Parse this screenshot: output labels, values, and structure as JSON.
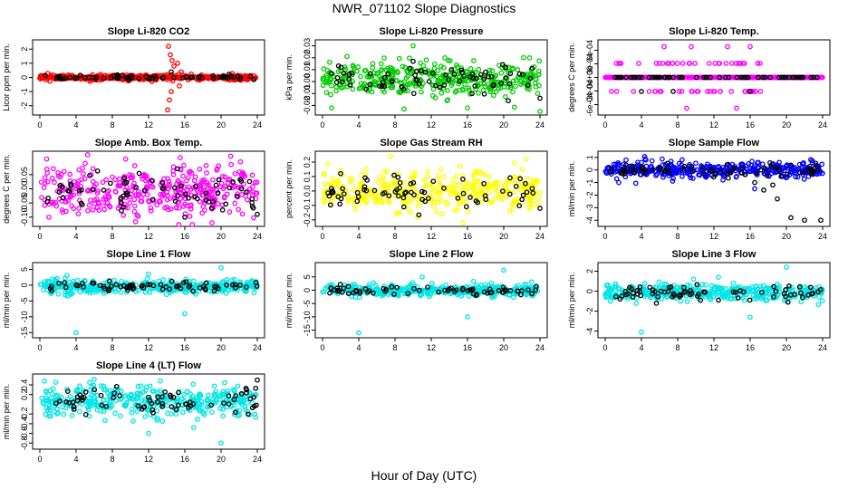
{
  "figure": {
    "title": "NWR_071102  Slope Diagnostics",
    "xlabel": "Hour of Day (UTC)"
  },
  "chart_data": [
    {
      "type": "scatter",
      "title": "Slope Li-820 CO2",
      "ylabel": "Licor ppm per min.",
      "xlim": [
        0,
        24
      ],
      "xticks": [
        "0",
        "4",
        "8",
        "12",
        "16",
        "20",
        "24"
      ],
      "ylim": [
        -2.4,
        2.4
      ],
      "yticks": [
        {
          "v": -2,
          "label": "-2"
        },
        {
          "v": -1,
          "label": "-1"
        },
        {
          "v": 0,
          "label": "0"
        },
        {
          "v": 1,
          "label": "1"
        },
        {
          "v": 2,
          "label": "2"
        }
      ],
      "color": "#ff0000",
      "center": 0,
      "noise": 0.1,
      "black_noise": 0.08,
      "outliers": [
        [
          14.2,
          2.2
        ],
        [
          14.4,
          1.6
        ],
        [
          14.6,
          1.2
        ],
        [
          14.8,
          0.8
        ],
        [
          14.5,
          -1.0
        ],
        [
          14.3,
          -1.6
        ],
        [
          14.1,
          -2.3
        ],
        [
          15.2,
          1.0
        ],
        [
          15.4,
          -0.6
        ],
        [
          15.6,
          0.4
        ]
      ],
      "black_outliers": [
        [
          14.5,
          0.4
        ]
      ]
    },
    {
      "type": "scatter",
      "title": "Slope Li-820 Pressure",
      "ylabel": "kPa per min.",
      "xlim": [
        0,
        24
      ],
      "xticks": [
        "0",
        "4",
        "8",
        "12",
        "16",
        "20",
        "24"
      ],
      "ylim": [
        -0.025,
        0.032
      ],
      "yticks": [
        {
          "v": -0.02,
          "label": "-0.02"
        },
        {
          "v": -0.01,
          "label": "-0.01"
        },
        {
          "v": 0,
          "label": "0.00"
        },
        {
          "v": 0.01,
          "label": "0.01"
        },
        {
          "v": 0.02,
          "label": "0.02"
        },
        {
          "v": 0.03,
          "label": "0.03"
        }
      ],
      "color": "#00cc00",
      "center": 0.002,
      "noise": 0.007,
      "black_noise": 0.006,
      "outliers": [
        [
          1.0,
          -0.022
        ],
        [
          9.0,
          -0.023
        ],
        [
          10.0,
          0.03
        ],
        [
          16.0,
          -0.022
        ],
        [
          24.0,
          -0.025
        ],
        [
          13.5,
          0.02
        ]
      ],
      "black_outliers": [
        [
          10.0,
          0.017
        ],
        [
          24.0,
          -0.014
        ],
        [
          16.5,
          -0.01
        ],
        [
          20.5,
          -0.016
        ]
      ]
    },
    {
      "type": "scatter",
      "title": "Slope Li-820 Temp.",
      "ylabel": "degrees C per min.",
      "xlim": [
        0,
        24
      ],
      "xticks": [
        "0",
        "4",
        "8",
        "12",
        "16",
        "20",
        "24"
      ],
      "ylim": [
        -0.00075,
        0.00075
      ],
      "yticks": [
        {
          "v": -0.0006,
          "label": "-6e-04"
        },
        {
          "v": -0.0003,
          "label": "-3e-04"
        },
        {
          "v": 0,
          "label": "0e+00"
        },
        {
          "v": 0.0003,
          "label": "3e-04"
        },
        {
          "v": 0.0006,
          "label": "6e-04"
        }
      ],
      "color": "#ff00ff",
      "center": 0,
      "noise": 0,
      "black_noise": 0,
      "quantized": [
        0.00031,
        -0.00031
      ],
      "quantized_count": 60,
      "outliers": [
        [
          6.5,
          0.00068
        ],
        [
          9.5,
          0.00068
        ],
        [
          13.5,
          0.00068
        ],
        [
          16.0,
          0.00068
        ],
        [
          9.0,
          -0.00068
        ],
        [
          14.5,
          -0.00068
        ]
      ],
      "black_outliers": [
        [
          4.0,
          -0.00031
        ],
        [
          7.5,
          -0.00031
        ],
        [
          16.0,
          -0.00031
        ]
      ]
    },
    {
      "type": "scatter",
      "title": "Slope Amb. Box Temp.",
      "ylabel": "degrees C per min.",
      "xlim": [
        0,
        24
      ],
      "xticks": [
        "0",
        "4",
        "8",
        "12",
        "16",
        "20",
        "24"
      ],
      "ylim": [
        -0.12,
        0.12
      ],
      "yticks": [
        {
          "v": -0.1,
          "label": "-0.10"
        },
        {
          "v": -0.05,
          "label": "-0.05"
        },
        {
          "v": 0,
          "label": "0.00"
        },
        {
          "v": 0.05,
          "label": "0.05"
        }
      ],
      "color": "#ff00ff",
      "center": -0.01,
      "noise": 0.04,
      "black_noise": 0.035,
      "outliers": [
        [
          15.5,
          0.11
        ],
        [
          19.0,
          -0.12
        ],
        [
          5.0,
          0.09
        ],
        [
          1.0,
          -0.1
        ]
      ],
      "black_outliers": [
        [
          24.0,
          -0.09
        ],
        [
          16.0,
          -0.1
        ]
      ]
    },
    {
      "type": "scatter",
      "title": "Slope Gas Stream RH",
      "ylabel": "percent per min.",
      "xlim": [
        0,
        24
      ],
      "xticks": [
        "0",
        "4",
        "8",
        "12",
        "16",
        "20",
        "24"
      ],
      "ylim": [
        -0.22,
        0.25
      ],
      "yticks": [
        {
          "v": -0.2,
          "label": "-0.2"
        },
        {
          "v": -0.1,
          "label": "-0.1"
        },
        {
          "v": 0,
          "label": "0.0"
        },
        {
          "v": 0.1,
          "label": "0.1"
        },
        {
          "v": 0.2,
          "label": "0.2"
        }
      ],
      "color": "#ffff00",
      "center": 0,
      "noise": 0.07,
      "black_noise": 0.06,
      "outliers": [
        [
          7.5,
          0.24
        ],
        [
          15.5,
          -0.22
        ],
        [
          22.5,
          0.22
        ]
      ],
      "black_outliers": [
        [
          2.0,
          0.12
        ],
        [
          24.0,
          -0.12
        ]
      ]
    },
    {
      "type": "scatter",
      "title": "Slope Sample Flow",
      "ylabel": "ml/min per min.",
      "xlim": [
        0,
        24
      ],
      "xticks": [
        "0",
        "4",
        "8",
        "12",
        "16",
        "20",
        "24"
      ],
      "ylim": [
        -4.2,
        1.2
      ],
      "yticks": [
        {
          "v": -4,
          "label": "-4"
        },
        {
          "v": -3,
          "label": "-3"
        },
        {
          "v": -2,
          "label": "-2"
        },
        {
          "v": -1,
          "label": "-1"
        },
        {
          "v": 0,
          "label": "0"
        },
        {
          "v": 1,
          "label": "1"
        }
      ],
      "color": "#0000ff",
      "center": 0,
      "noise": 0.3,
      "black_noise": 0.25,
      "outliers": [
        [
          1.5,
          -1.0
        ],
        [
          4.5,
          0.8
        ],
        [
          13.0,
          -0.8
        ],
        [
          16.5,
          -1.5
        ]
      ],
      "black_outliers": [
        [
          16.5,
          -1.0
        ],
        [
          17.5,
          -1.6
        ],
        [
          19.0,
          -2.3
        ],
        [
          20.5,
          -3.8
        ],
        [
          22.0,
          -4.0
        ],
        [
          23.8,
          -4.0
        ],
        [
          18.5,
          -1.2
        ]
      ]
    },
    {
      "type": "scatter",
      "title": "Slope Line 1 Flow",
      "ylabel": "ml/min per min.",
      "xlim": [
        0,
        24
      ],
      "xticks": [
        "0",
        "4",
        "8",
        "12",
        "16",
        "20",
        "24"
      ],
      "ylim": [
        -15.5,
        6
      ],
      "yticks": [
        {
          "v": -15,
          "label": "-15"
        },
        {
          "v": -10,
          "label": "-10"
        },
        {
          "v": -5,
          "label": "-5"
        },
        {
          "v": 0,
          "label": "0"
        },
        {
          "v": 5,
          "label": "5"
        }
      ],
      "color": "#00e5e5",
      "center": -0.5,
      "noise": 1.0,
      "black_noise": 0.8,
      "outliers": [
        [
          4.0,
          -15.0
        ],
        [
          16.0,
          -9.0
        ],
        [
          20.0,
          5.5
        ],
        [
          12.0,
          3.5
        ]
      ],
      "black_outliers": []
    },
    {
      "type": "scatter",
      "title": "Slope Line 2 Flow",
      "ylabel": "ml/min per min.",
      "xlim": [
        0,
        24
      ],
      "xticks": [
        "0",
        "4",
        "8",
        "12",
        "16",
        "20",
        "24"
      ],
      "ylim": [
        -16.5,
        9
      ],
      "yticks": [
        {
          "v": -15,
          "label": "-15"
        },
        {
          "v": -10,
          "label": "-10"
        },
        {
          "v": -5,
          "label": "-5"
        },
        {
          "v": 0,
          "label": "0"
        },
        {
          "v": 5,
          "label": "5"
        }
      ],
      "color": "#00e5e5",
      "center": 0,
      "noise": 1.1,
      "black_noise": 0.9,
      "outliers": [
        [
          4.0,
          -16.0
        ],
        [
          16.0,
          -10.0
        ],
        [
          20.0,
          7.5
        ],
        [
          11.0,
          5.0
        ]
      ],
      "black_outliers": []
    },
    {
      "type": "scatter",
      "title": "Slope Line 3 Flow",
      "ylabel": "ml/min per min.",
      "xlim": [
        0,
        24
      ],
      "xticks": [
        "0",
        "4",
        "8",
        "12",
        "16",
        "20",
        "24"
      ],
      "ylim": [
        -4.3,
        2.5
      ],
      "yticks": [
        {
          "v": -4,
          "label": "-4"
        },
        {
          "v": -2,
          "label": "-2"
        },
        {
          "v": 0,
          "label": "0"
        },
        {
          "v": 2,
          "label": "2"
        }
      ],
      "color": "#00e5e5",
      "center": -0.1,
      "noise": 0.4,
      "black_noise": 0.35,
      "outliers": [
        [
          4.0,
          -4.1
        ],
        [
          16.0,
          -2.6
        ],
        [
          20.0,
          2.4
        ],
        [
          12.5,
          1.4
        ]
      ],
      "black_outliers": [
        [
          12.5,
          -0.9
        ]
      ]
    },
    {
      "type": "scatter",
      "title": "Slope Line 4 (LT) Flow",
      "ylabel": "ml/min per min.",
      "xlim": [
        0,
        24
      ],
      "xticks": [
        "0",
        "4",
        "8",
        "12",
        "16",
        "20",
        "24"
      ],
      "ylim": [
        -0.85,
        0.55
      ],
      "yticks": [
        {
          "v": -0.8,
          "label": "-0.8"
        },
        {
          "v": -0.6,
          "label": "-0.6"
        },
        {
          "v": -0.4,
          "label": "-0.4"
        },
        {
          "v": -0.2,
          "label": "-0.2"
        },
        {
          "v": 0.2,
          "label": "0.2"
        },
        {
          "v": 0.4,
          "label": "0.4"
        }
      ],
      "color": "#00e5e5",
      "center": 0.05,
      "noise": 0.16,
      "black_noise": 0.14,
      "outliers": [
        [
          20.0,
          -0.8
        ],
        [
          12.0,
          -0.6
        ],
        [
          5.5,
          0.45
        ]
      ],
      "black_outliers": [
        [
          24.0,
          0.5
        ]
      ]
    }
  ]
}
